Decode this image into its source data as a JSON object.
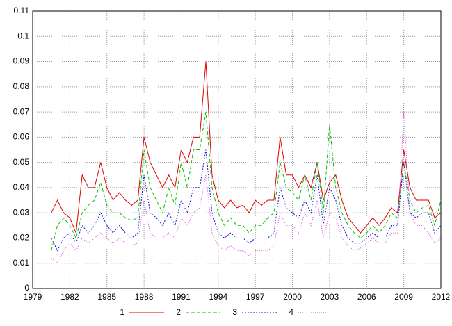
{
  "chart_data": {
    "type": "line",
    "x": [
      1980.5,
      1981,
      1981.5,
      1982,
      1982.5,
      1983,
      1983.5,
      1984,
      1984.5,
      1985,
      1985.5,
      1986,
      1986.5,
      1987,
      1987.5,
      1988,
      1988.5,
      1989,
      1989.5,
      1990,
      1990.5,
      1991,
      1991.5,
      1992,
      1992.5,
      1993,
      1993.5,
      1994,
      1994.5,
      1995,
      1995.5,
      1996,
      1996.5,
      1997,
      1997.5,
      1998,
      1998.5,
      1999,
      1999.5,
      2000,
      2000.5,
      2001,
      2001.5,
      2002,
      2002.5,
      2003,
      2003.5,
      2004,
      2004.5,
      2005,
      2005.5,
      2006,
      2006.5,
      2007,
      2007.5,
      2008,
      2008.5,
      2009,
      2009.5,
      2010,
      2010.5,
      2011,
      2011.5,
      2012
    ],
    "series": [
      {
        "name": "1",
        "color": "#e00000",
        "dash": "none",
        "values": [
          0.03,
          0.035,
          0.03,
          0.028,
          0.022,
          0.045,
          0.04,
          0.04,
          0.05,
          0.04,
          0.035,
          0.038,
          0.035,
          0.033,
          0.035,
          0.06,
          0.05,
          0.045,
          0.04,
          0.045,
          0.04,
          0.055,
          0.05,
          0.06,
          0.06,
          0.09,
          0.045,
          0.035,
          0.032,
          0.035,
          0.032,
          0.033,
          0.03,
          0.035,
          0.033,
          0.035,
          0.035,
          0.06,
          0.045,
          0.045,
          0.04,
          0.045,
          0.04,
          0.05,
          0.035,
          0.042,
          0.045,
          0.035,
          0.028,
          0.025,
          0.022,
          0.025,
          0.028,
          0.025,
          0.028,
          0.032,
          0.03,
          0.055,
          0.04,
          0.035,
          0.035,
          0.035,
          0.028,
          0.03
        ]
      },
      {
        "name": "2",
        "color": "#00c000",
        "dash": "5,3",
        "values": [
          0.015,
          0.025,
          0.028,
          0.025,
          0.02,
          0.03,
          0.033,
          0.035,
          0.042,
          0.033,
          0.03,
          0.03,
          0.028,
          0.027,
          0.028,
          0.055,
          0.04,
          0.035,
          0.03,
          0.04,
          0.033,
          0.05,
          0.04,
          0.055,
          0.055,
          0.07,
          0.04,
          0.03,
          0.025,
          0.028,
          0.025,
          0.025,
          0.022,
          0.025,
          0.025,
          0.028,
          0.03,
          0.05,
          0.04,
          0.038,
          0.035,
          0.045,
          0.035,
          0.05,
          0.03,
          0.065,
          0.04,
          0.03,
          0.025,
          0.022,
          0.02,
          0.022,
          0.025,
          0.022,
          0.025,
          0.03,
          0.028,
          0.05,
          0.035,
          0.03,
          0.032,
          0.033,
          0.025,
          0.035
        ]
      },
      {
        "name": "3",
        "color": "#1010d0",
        "dash": "2,2",
        "values": [
          0.02,
          0.015,
          0.02,
          0.022,
          0.018,
          0.025,
          0.022,
          0.025,
          0.03,
          0.025,
          0.022,
          0.025,
          0.022,
          0.02,
          0.022,
          0.045,
          0.03,
          0.028,
          0.025,
          0.03,
          0.025,
          0.035,
          0.03,
          0.04,
          0.04,
          0.055,
          0.03,
          0.022,
          0.02,
          0.022,
          0.02,
          0.02,
          0.018,
          0.02,
          0.02,
          0.02,
          0.022,
          0.04,
          0.032,
          0.03,
          0.028,
          0.035,
          0.03,
          0.045,
          0.025,
          0.04,
          0.035,
          0.025,
          0.02,
          0.018,
          0.018,
          0.02,
          0.022,
          0.02,
          0.02,
          0.025,
          0.025,
          0.05,
          0.03,
          0.028,
          0.03,
          0.03,
          0.022,
          0.025
        ]
      },
      {
        "name": "4",
        "color": "#e040e0",
        "dash": "1,2",
        "values": [
          0.012,
          0.01,
          0.015,
          0.018,
          0.015,
          0.02,
          0.018,
          0.02,
          0.022,
          0.02,
          0.018,
          0.02,
          0.018,
          0.017,
          0.018,
          0.035,
          0.022,
          0.02,
          0.02,
          0.022,
          0.02,
          0.028,
          0.025,
          0.03,
          0.032,
          0.045,
          0.022,
          0.017,
          0.015,
          0.017,
          0.015,
          0.015,
          0.013,
          0.015,
          0.015,
          0.015,
          0.017,
          0.03,
          0.025,
          0.025,
          0.022,
          0.03,
          0.025,
          0.035,
          0.02,
          0.03,
          0.028,
          0.02,
          0.017,
          0.015,
          0.016,
          0.018,
          0.02,
          0.018,
          0.018,
          0.022,
          0.022,
          0.07,
          0.03,
          0.025,
          0.025,
          0.022,
          0.018,
          0.02
        ]
      }
    ],
    "xlim": [
      1979,
      2012
    ],
    "xticks": [
      1979,
      1982,
      1985,
      1988,
      1991,
      1994,
      1997,
      2000,
      2003,
      2006,
      2009,
      2012
    ],
    "ylim": [
      0,
      0.11
    ],
    "yticks": [
      0,
      0.01,
      0.02,
      0.03,
      0.04,
      0.05,
      0.06,
      0.07,
      0.08,
      0.09,
      0.1,
      0.11
    ],
    "grid": true,
    "legend": "bottom"
  }
}
